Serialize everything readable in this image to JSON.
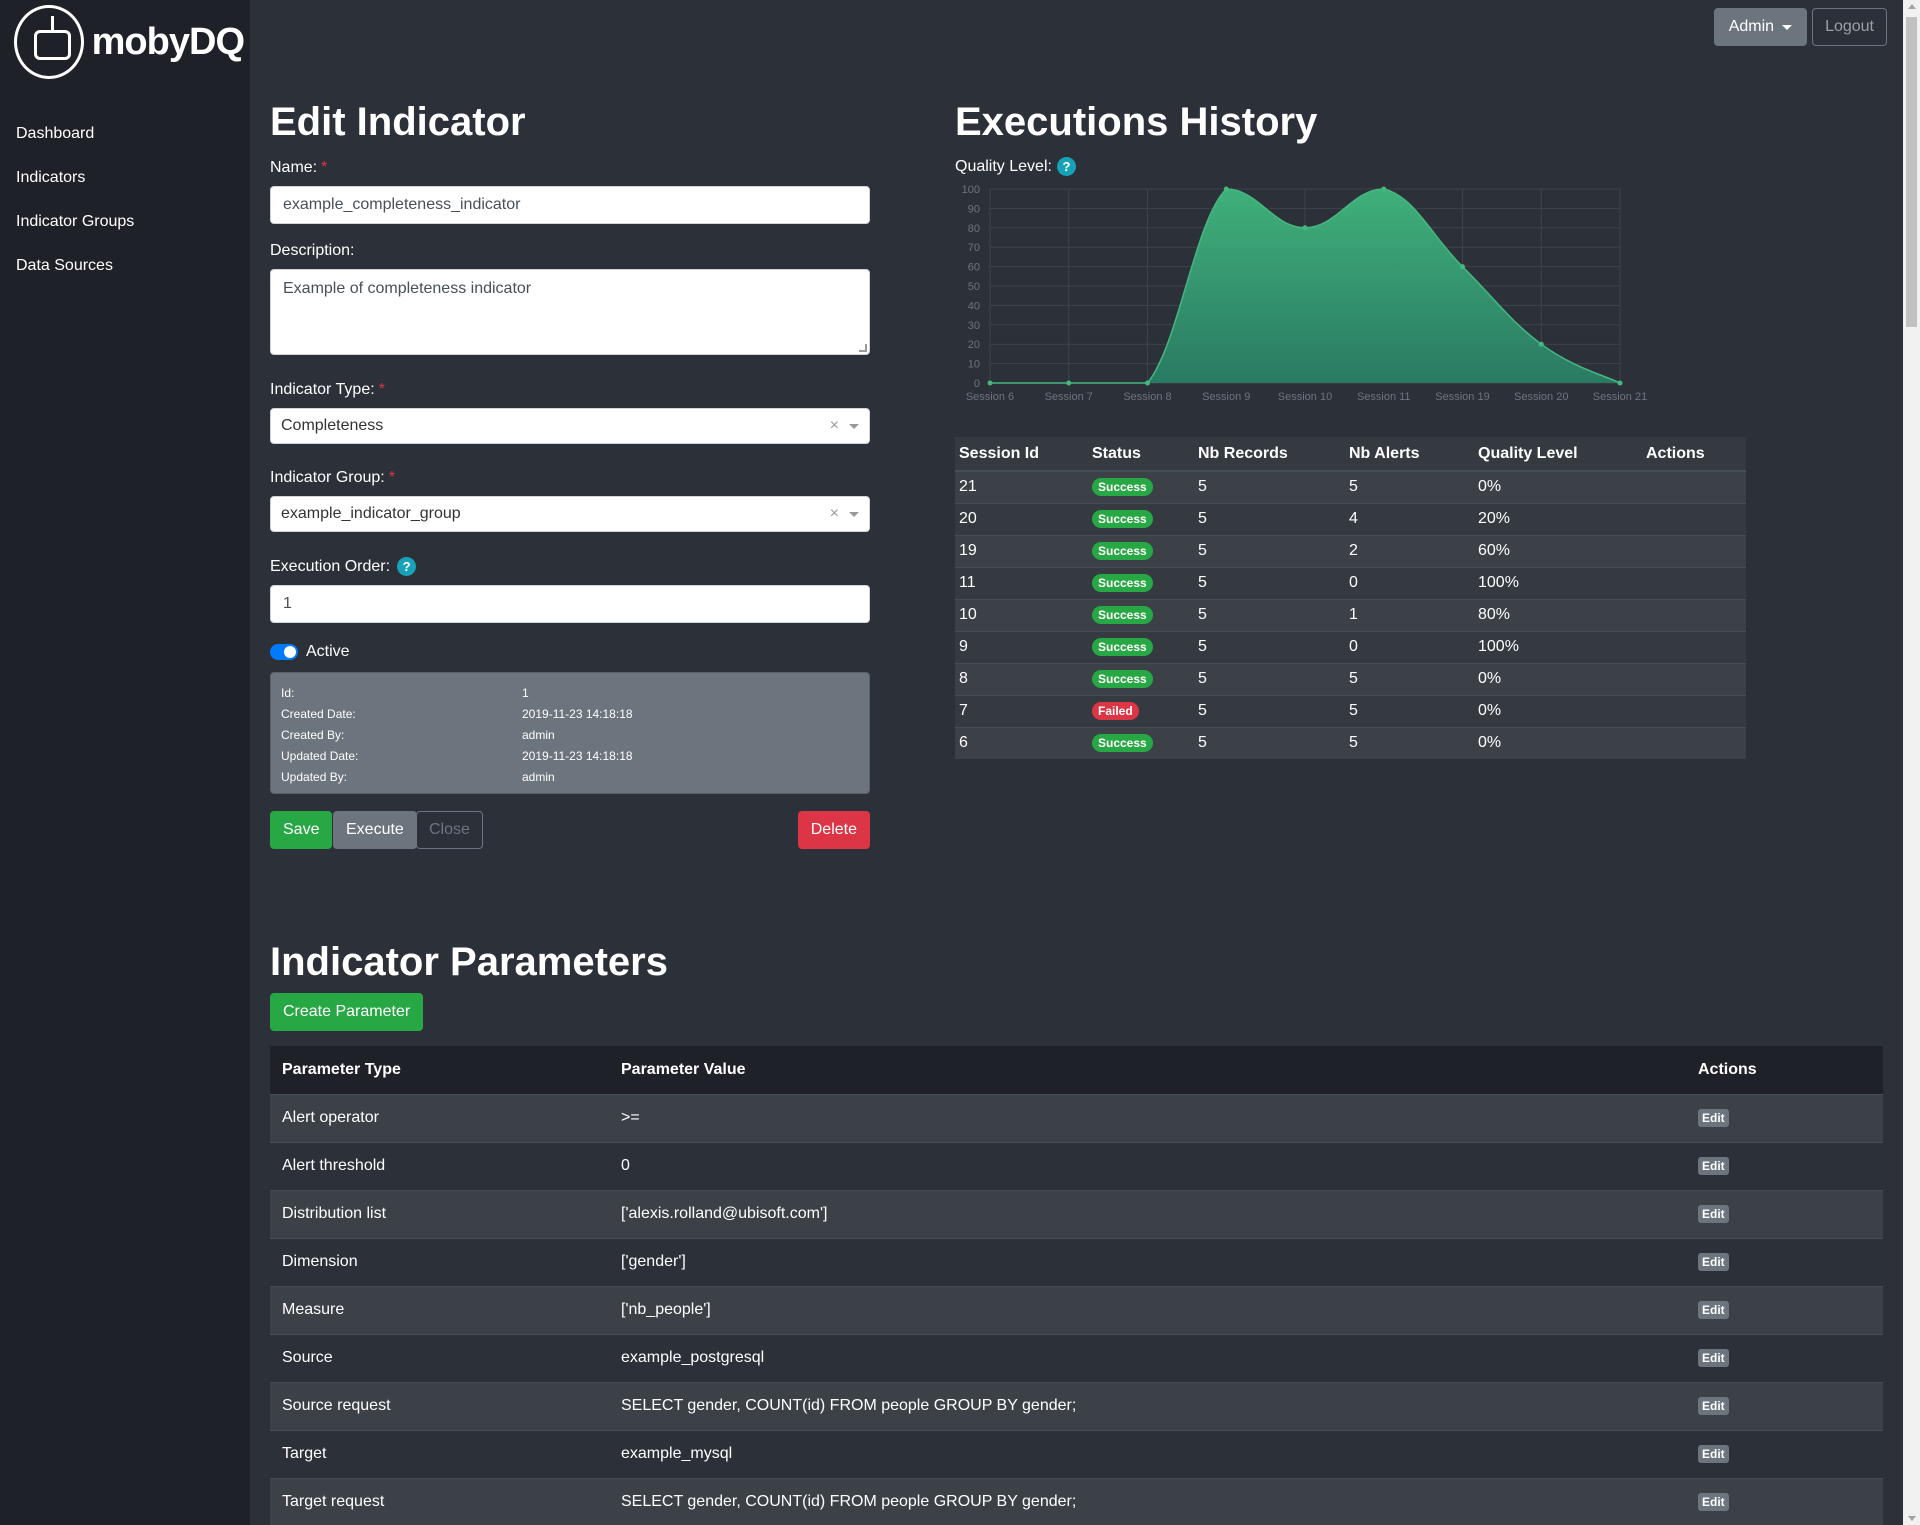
{
  "brand": {
    "name_bold": "moby",
    "name_rest": "DQ"
  },
  "nav": {
    "items": [
      "Dashboard",
      "Indicators",
      "Indicator Groups",
      "Data Sources"
    ]
  },
  "topbar": {
    "admin_label": "Admin",
    "logout_label": "Logout"
  },
  "form": {
    "title": "Edit Indicator",
    "name_label": "Name:",
    "name_value": "example_completeness_indicator",
    "description_label": "Description:",
    "description_value": "Example of completeness indicator",
    "type_label": "Indicator Type:",
    "type_value": "Completeness",
    "group_label": "Indicator Group:",
    "group_value": "example_indicator_group",
    "order_label": "Execution Order:",
    "order_value": "1",
    "active_label": "Active",
    "required_mark": "*",
    "help_mark": "?",
    "clear_mark": "×",
    "meta": [
      {
        "k": "Id:",
        "v": "1"
      },
      {
        "k": "Created Date:",
        "v": "2019-11-23 14:18:18"
      },
      {
        "k": "Created By:",
        "v": "admin"
      },
      {
        "k": "Updated Date:",
        "v": "2019-11-23 14:18:18"
      },
      {
        "k": "Updated By:",
        "v": "admin"
      }
    ],
    "save_label": "Save",
    "execute_label": "Execute",
    "close_label": "Close",
    "delete_label": "Delete"
  },
  "history": {
    "title": "Executions History",
    "quality_label": "Quality Level:",
    "columns": [
      "Session Id",
      "Status",
      "Nb Records",
      "Nb Alerts",
      "Quality Level",
      "Actions"
    ],
    "rows": [
      {
        "id": "21",
        "status": "Success",
        "records": "5",
        "alerts": "5",
        "quality": "0%"
      },
      {
        "id": "20",
        "status": "Success",
        "records": "5",
        "alerts": "4",
        "quality": "20%"
      },
      {
        "id": "19",
        "status": "Success",
        "records": "5",
        "alerts": "2",
        "quality": "60%"
      },
      {
        "id": "11",
        "status": "Success",
        "records": "5",
        "alerts": "0",
        "quality": "100%"
      },
      {
        "id": "10",
        "status": "Success",
        "records": "5",
        "alerts": "1",
        "quality": "80%"
      },
      {
        "id": "9",
        "status": "Success",
        "records": "5",
        "alerts": "0",
        "quality": "100%"
      },
      {
        "id": "8",
        "status": "Success",
        "records": "5",
        "alerts": "5",
        "quality": "0%"
      },
      {
        "id": "7",
        "status": "Failed",
        "records": "5",
        "alerts": "5",
        "quality": "0%"
      },
      {
        "id": "6",
        "status": "Success",
        "records": "5",
        "alerts": "5",
        "quality": "0%"
      }
    ]
  },
  "chart_data": {
    "type": "area",
    "categories": [
      "Session 6",
      "Session 7",
      "Session 8",
      "Session 9",
      "Session 10",
      "Session 11",
      "Session 19",
      "Session 20",
      "Session 21"
    ],
    "values": [
      0,
      0,
      0,
      100,
      80,
      100,
      60,
      20,
      0
    ],
    "ylim": [
      0,
      100
    ],
    "yticks": [
      0,
      10,
      20,
      30,
      40,
      50,
      60,
      70,
      80,
      90,
      100
    ],
    "grid": true,
    "colors": {
      "fill_top": "#3fb07a",
      "fill_bottom": "#2a7a63",
      "line": "#45b880"
    }
  },
  "parameters": {
    "title": "Indicator Parameters",
    "create_label": "Create Parameter",
    "columns": [
      "Parameter Type",
      "Parameter Value",
      "Actions"
    ],
    "edit_label": "Edit",
    "rows": [
      {
        "type": "Alert operator",
        "value": ">="
      },
      {
        "type": "Alert threshold",
        "value": "0"
      },
      {
        "type": "Distribution list",
        "value": "['alexis.rolland@ubisoft.com']"
      },
      {
        "type": "Dimension",
        "value": "['gender']"
      },
      {
        "type": "Measure",
        "value": "['nb_people']"
      },
      {
        "type": "Source",
        "value": "example_postgresql"
      },
      {
        "type": "Source request",
        "value": "SELECT gender, COUNT(id) FROM people GROUP BY gender;"
      },
      {
        "type": "Target",
        "value": "example_mysql"
      },
      {
        "type": "Target request",
        "value": "SELECT gender, COUNT(id) FROM people GROUP BY gender;"
      }
    ]
  }
}
